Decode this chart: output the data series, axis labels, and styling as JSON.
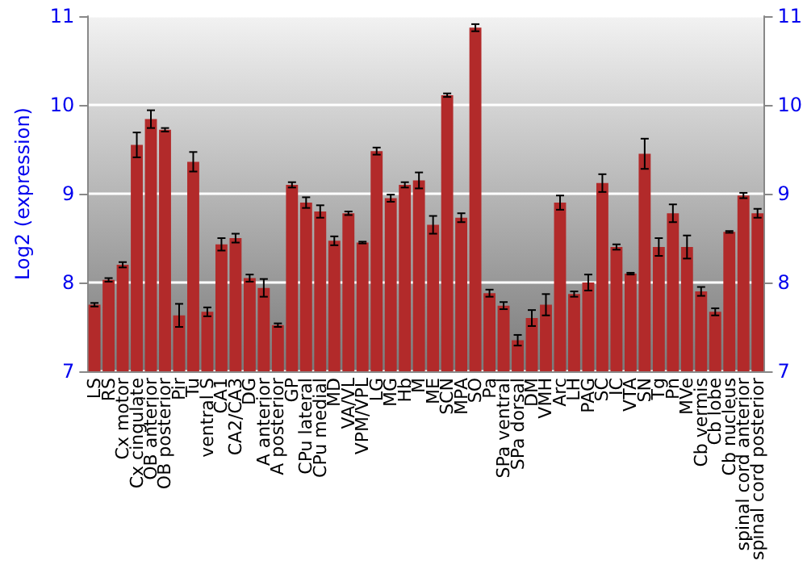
{
  "chart_data": {
    "type": "bar",
    "ylabel": "Log2 (expression)",
    "categories": [
      "LS",
      "RS",
      "Cx motor",
      "Cx cingulate",
      "OB anterior",
      "OB posterior",
      "Pir",
      "Tu",
      "ventral S",
      "CA1",
      "CA2/CA3",
      "DG",
      "A anterior",
      "A posterior",
      "GP",
      "CPu lateral",
      "CPu medial",
      "MD",
      "VA/VL",
      "VPM/VPL",
      "LG",
      "MG",
      "Hb",
      "M",
      "ME",
      "SCN",
      "MPA",
      "SO",
      "Pa",
      "SPa ventral",
      "SPa dorsal",
      "DM",
      "VMH",
      "Arc",
      "LH",
      "PAG",
      "SC",
      "IC",
      "VTA",
      "SN",
      "Tg",
      "Pn",
      "MVe",
      "Cb vermis",
      "Cb lobe",
      "Cb nucleus",
      "spinal cord anterior",
      "spinal cord posterior"
    ],
    "values": [
      7.75,
      8.03,
      8.2,
      9.55,
      9.84,
      9.72,
      7.63,
      9.36,
      7.67,
      8.43,
      8.5,
      8.05,
      7.94,
      7.52,
      9.1,
      8.9,
      8.8,
      8.47,
      8.78,
      8.45,
      9.48,
      8.95,
      9.1,
      9.15,
      8.65,
      10.11,
      8.73,
      10.87,
      7.88,
      7.74,
      7.35,
      7.6,
      7.75,
      8.9,
      7.87,
      8.0,
      9.12,
      8.4,
      8.1,
      9.45,
      8.4,
      8.78,
      8.4,
      7.9,
      7.67,
      8.57,
      8.98,
      8.78
    ],
    "errors": [
      0.02,
      0.02,
      0.03,
      0.14,
      0.1,
      0.02,
      0.13,
      0.11,
      0.05,
      0.07,
      0.05,
      0.04,
      0.1,
      0.02,
      0.03,
      0.06,
      0.07,
      0.05,
      0.02,
      0.01,
      0.04,
      0.04,
      0.03,
      0.09,
      0.1,
      0.02,
      0.05,
      0.04,
      0.04,
      0.04,
      0.06,
      0.09,
      0.12,
      0.08,
      0.03,
      0.09,
      0.1,
      0.03,
      0.01,
      0.17,
      0.1,
      0.1,
      0.13,
      0.05,
      0.04,
      0.01,
      0.03,
      0.05
    ],
    "color": "#b22a2a",
    "ylim": [
      7,
      11
    ],
    "yticks": [
      7,
      8,
      9,
      10,
      11
    ],
    "y2lim": [
      7,
      11
    ],
    "y2ticks": [
      7,
      8,
      9,
      10,
      11
    ],
    "grid": "y"
  }
}
